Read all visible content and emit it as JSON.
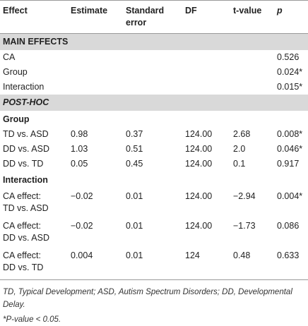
{
  "table": {
    "header": [
      "Effect",
      "Estimate",
      [
        "Standard",
        "error"
      ],
      "DF",
      "t-value",
      "p"
    ],
    "sections": [
      {
        "title": "MAIN EFFECTS",
        "rows": [
          [
            "CA",
            null,
            null,
            null,
            null,
            "0.526"
          ],
          [
            "Group",
            null,
            null,
            null,
            null,
            "0.024*"
          ],
          [
            "Interaction",
            null,
            null,
            null,
            null,
            "0.015*"
          ]
        ]
      },
      {
        "title": "POST-HOC",
        "groups": [
          {
            "title": "Group",
            "rows": [
              [
                "TD vs. ASD",
                "0.98",
                "0.37",
                "124.00",
                "2.68",
                "0.008*"
              ],
              [
                "DD vs. ASD",
                "1.03",
                "0.51",
                "124.00",
                "2.0",
                "0.046*"
              ],
              [
                "DD vs. TD",
                "0.05",
                "0.45",
                "124.00",
                "0.1",
                "0.917"
              ]
            ]
          },
          {
            "title": "Interaction",
            "rows": [
              [
                [
                  "CA effect:",
                  "TD vs. ASD"
                ],
                "−0.02",
                "0.01",
                "124.00",
                "−2.94",
                "0.004*"
              ],
              [
                [
                  "CA effect:",
                  "DD vs. ASD"
                ],
                "−0.02",
                "0.01",
                "124.00",
                "−1.73",
                "0.086"
              ],
              [
                [
                  "CA effect:",
                  "DD vs. TD"
                ],
                "0.004",
                "0.01",
                "124",
                "0.48",
                "0.633"
              ]
            ]
          }
        ]
      }
    ],
    "footnotes": [
      "TD, Typical Development; ASD, Autism Spectrum Disorders; DD, Developmental Delay.",
      "*P-value < 0.05."
    ]
  }
}
